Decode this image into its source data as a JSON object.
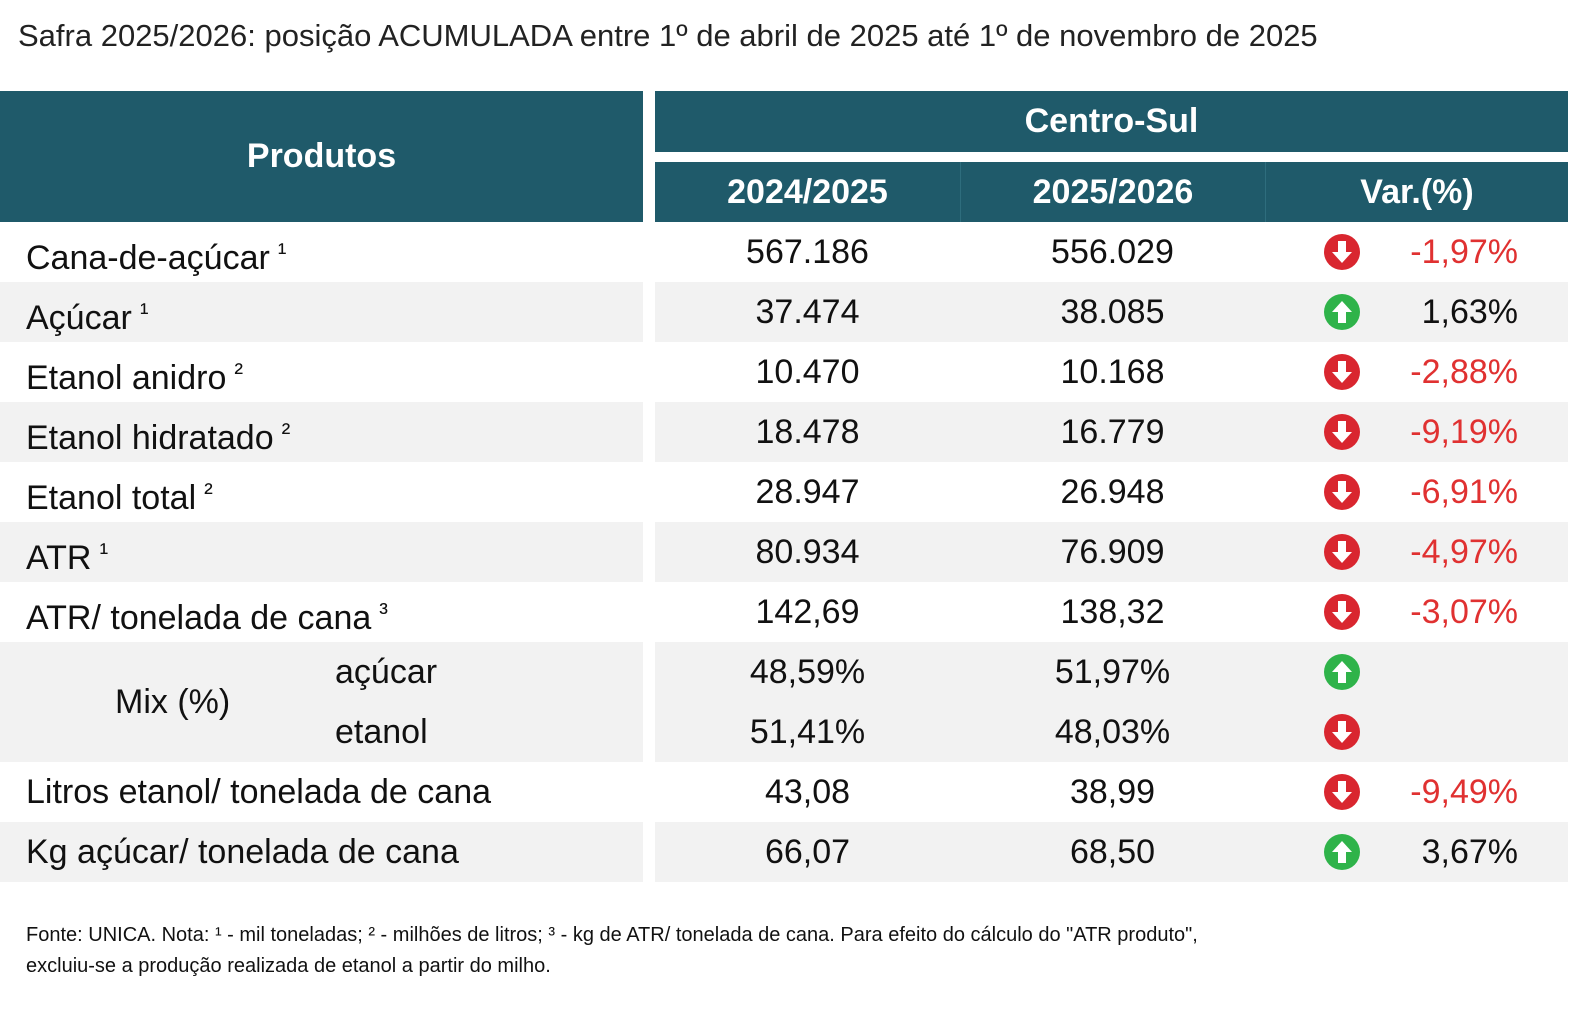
{
  "title": "Safra 2025/2026: posição ACUMULADA entre 1º de abril de 2025 até 1º de novembro de 2025",
  "header": {
    "products": "Produtos",
    "region": "Centro-Sul",
    "columns": [
      "2024/2025",
      "2025/2026",
      "Var.(%)"
    ]
  },
  "rows": [
    {
      "label": "Cana-de-açúcar",
      "note": "¹",
      "values": [
        "567.186",
        "556.029"
      ],
      "trend": "down",
      "var": "-1,97%"
    },
    {
      "label": "Açúcar",
      "note": "¹",
      "values": [
        "37.474",
        "38.085"
      ],
      "trend": "up",
      "var": "1,63%"
    },
    {
      "label": "Etanol anidro",
      "note": "²",
      "values": [
        "10.470",
        "10.168"
      ],
      "trend": "down",
      "var": "-2,88%"
    },
    {
      "label": "Etanol hidratado",
      "note": "²",
      "values": [
        "18.478",
        "16.779"
      ],
      "trend": "down",
      "var": "-9,19%"
    },
    {
      "label": "Etanol total",
      "note": "²",
      "values": [
        "28.947",
        "26.948"
      ],
      "trend": "down",
      "var": "-6,91%"
    },
    {
      "label": "ATR",
      "note": "¹",
      "values": [
        "80.934",
        "76.909"
      ],
      "trend": "down",
      "var": "-4,97%"
    },
    {
      "label": "ATR/ tonelada de cana",
      "note": "³",
      "values": [
        "142,69",
        "138,32"
      ],
      "trend": "down",
      "var": "-3,07%"
    },
    {
      "label": "Mix (%)",
      "sub": [
        {
          "label": "açúcar",
          "values": [
            "48,59%",
            "51,97%"
          ],
          "trend": "up"
        },
        {
          "label": "etanol",
          "values": [
            "51,41%",
            "48,03%"
          ],
          "trend": "down"
        }
      ]
    },
    {
      "label": "Litros etanol/ tonelada de cana",
      "values": [
        "43,08",
        "38,99"
      ],
      "trend": "down",
      "var": "-9,49%"
    },
    {
      "label": "Kg açúcar/ tonelada de cana",
      "values": [
        "66,07",
        "68,50"
      ],
      "trend": "up",
      "var": "3,67%"
    }
  ],
  "footnote": [
    "Fonte: UNICA. Nota: ¹ - mil toneladas; ² - milhões de litros; ³ - kg de ATR/ tonelada de cana. Para efeito do cálculo do \"ATR produto\",",
    "excluiu-se a produção realizada de etanol a partir do milho."
  ]
}
